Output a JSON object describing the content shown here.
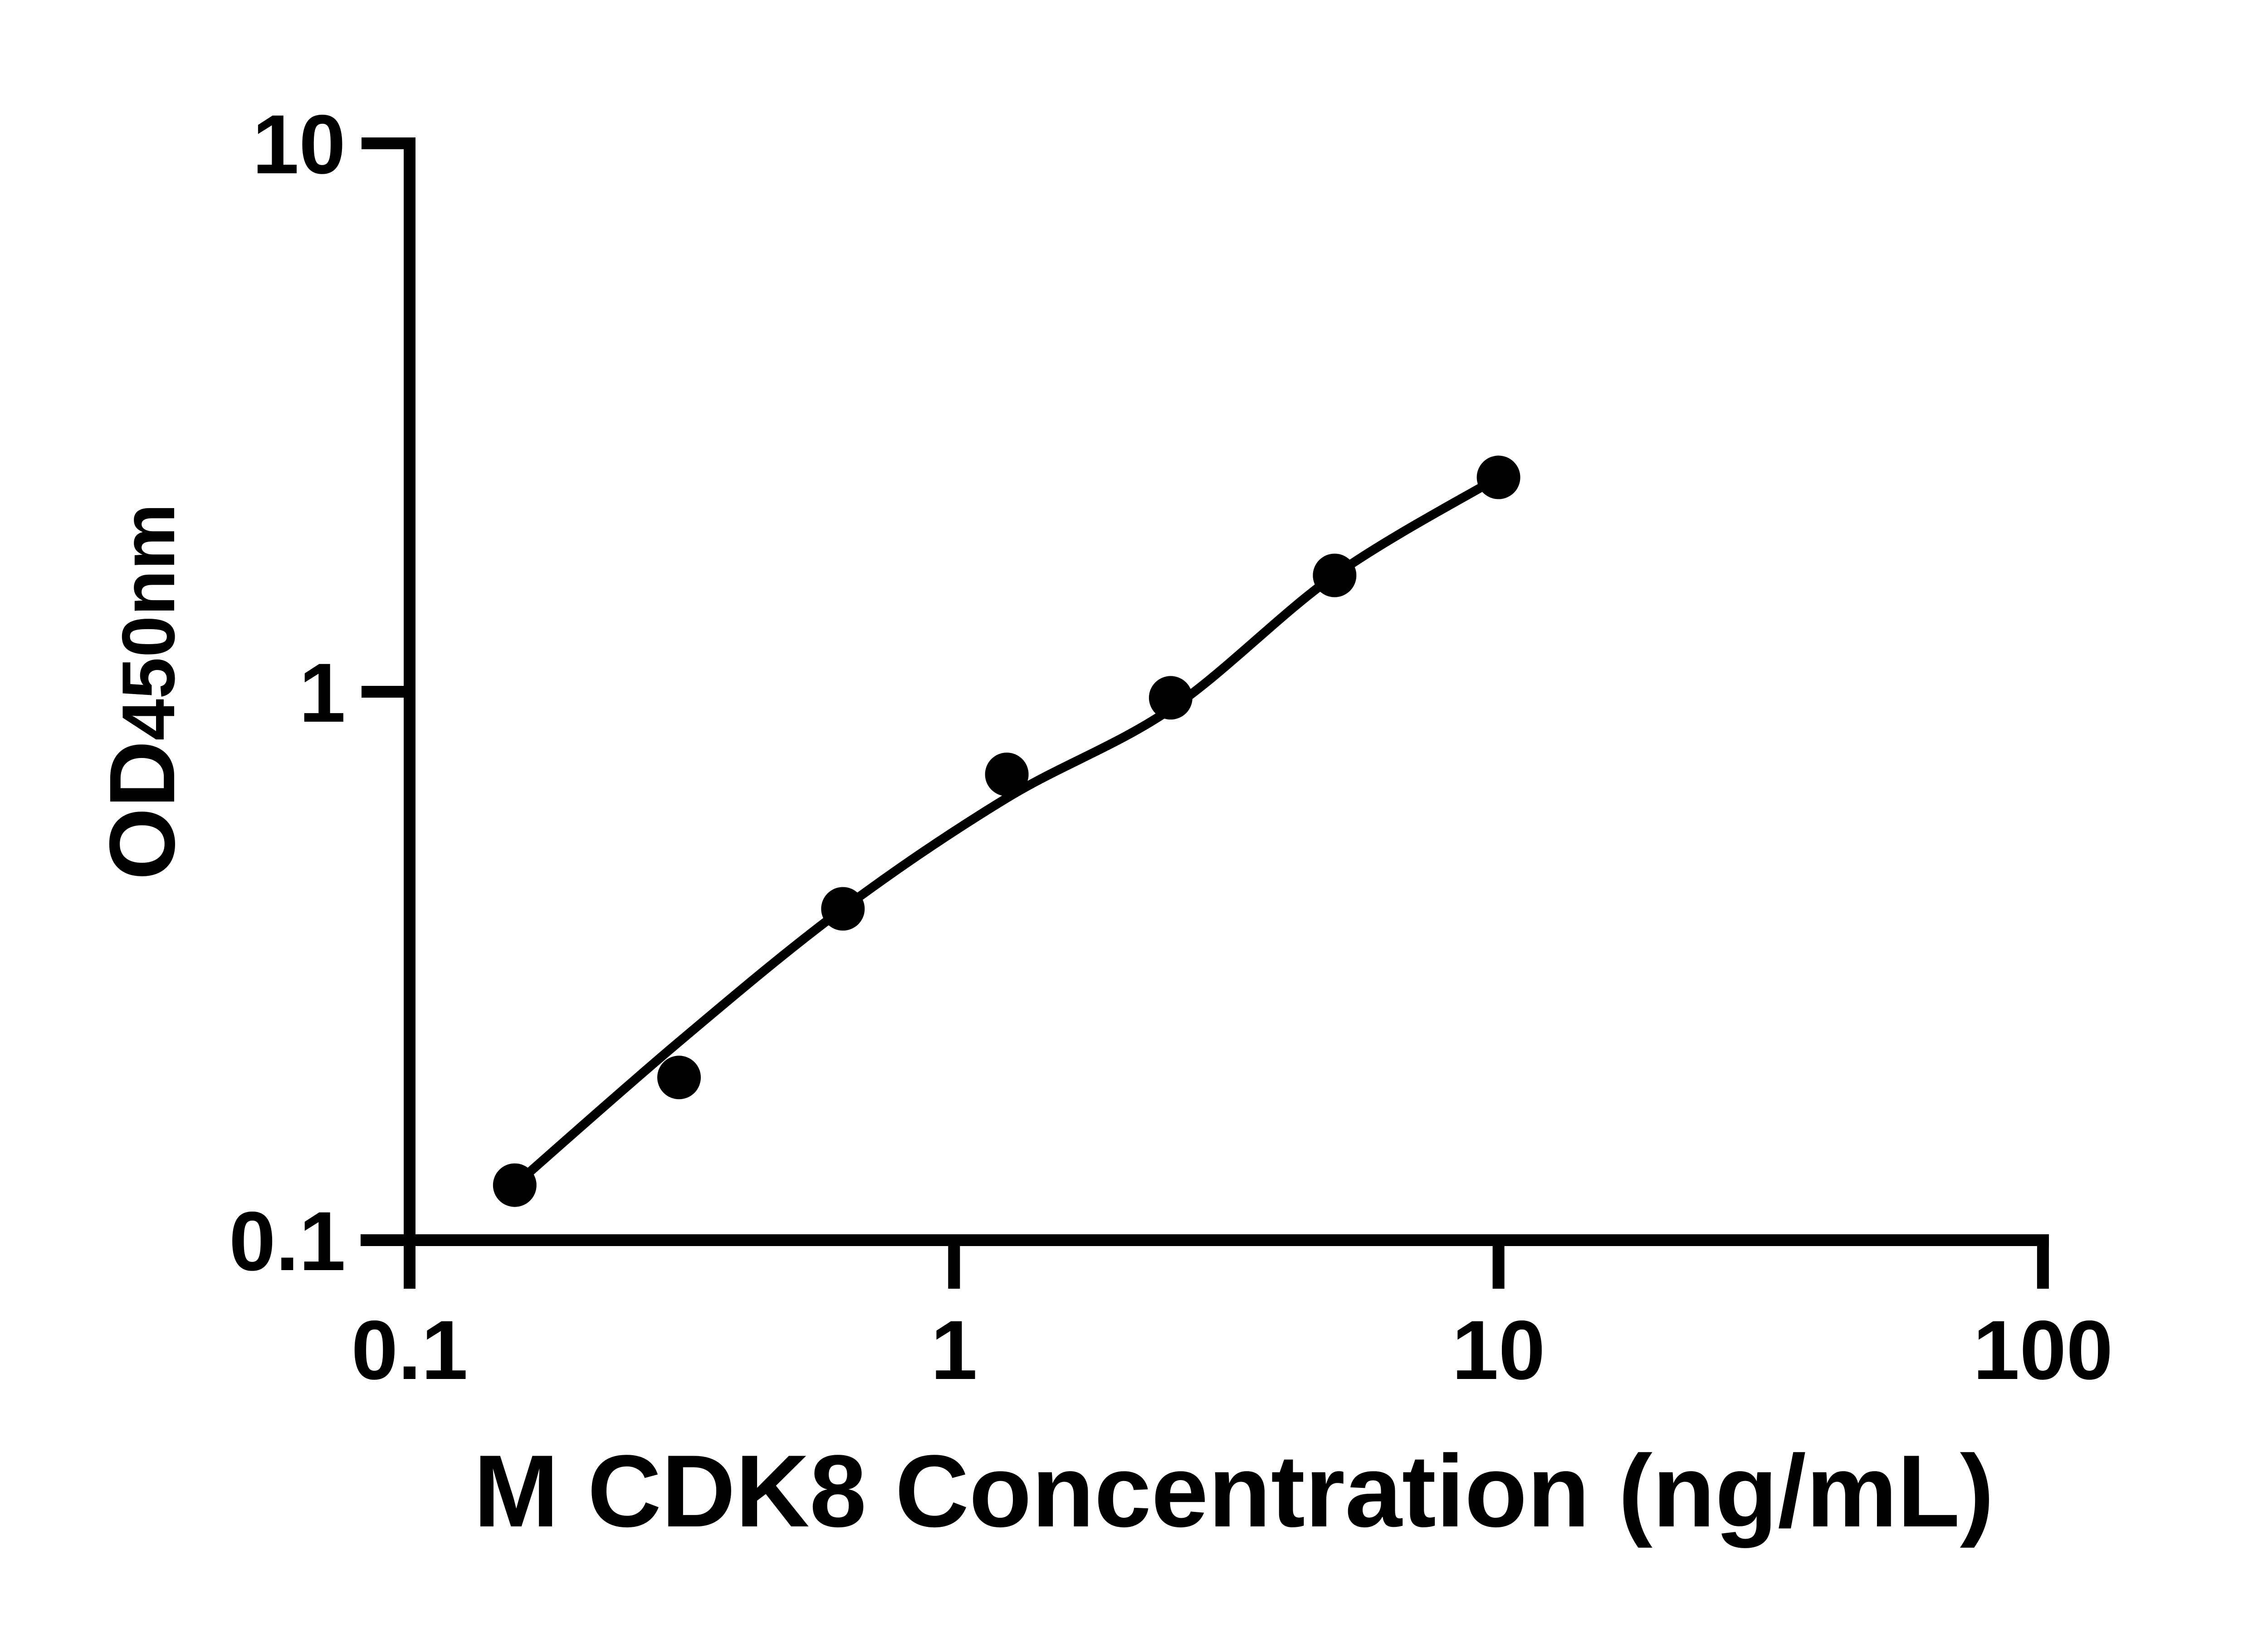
{
  "figure": {
    "background_color": "#ffffff",
    "axis_color": "#000000",
    "text_color": "#000000",
    "marker_color": "#000000",
    "curve_color": "#000000"
  },
  "chart_data": {
    "type": "scatter",
    "title": "",
    "xlabel": "M CDK8 Concentration (ng/mL)",
    "ylabel": "OD450nm",
    "ylabel_parts": {
      "main": "OD",
      "sub": "450nm"
    },
    "x_scale": "log",
    "y_scale": "log",
    "xlim": [
      0.1,
      100
    ],
    "ylim": [
      0.1,
      10
    ],
    "grid": false,
    "legend": "none",
    "x_ticks": {
      "values": [
        0.1,
        1,
        10,
        100
      ],
      "labels": [
        "0.1",
        "1",
        "10",
        "100"
      ]
    },
    "y_ticks": {
      "values": [
        0.1,
        1,
        10
      ],
      "labels": [
        "0.1",
        "1",
        "10"
      ]
    },
    "series": [
      {
        "name": "standard-data-points",
        "type": "scatter",
        "marker": "filled-circle",
        "color": "#000000",
        "x": [
          0.156,
          0.3125,
          0.625,
          1.25,
          2.5,
          5,
          10
        ],
        "y": [
          0.126,
          0.198,
          0.402,
          0.707,
          0.975,
          1.63,
          2.46
        ]
      },
      {
        "name": "fitted-standard-curve",
        "type": "line",
        "color": "#000000",
        "x": [
          0.156,
          0.3125,
          0.625,
          1.25,
          2.5,
          5,
          10
        ],
        "y": [
          0.126,
          0.23,
          0.402,
          0.64,
          0.93,
          1.63,
          2.46
        ]
      }
    ]
  }
}
